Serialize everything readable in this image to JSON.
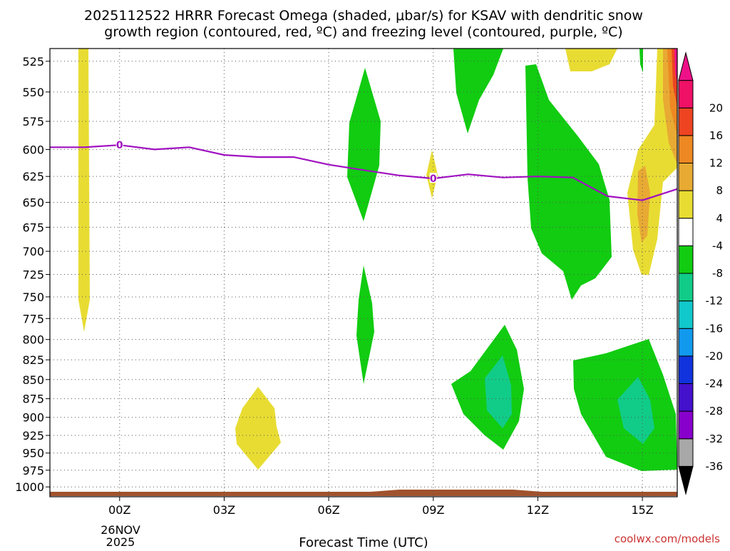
{
  "chart_data": {
    "type": "contour",
    "title_line1": "2025112522 HRRR Forecast Omega (shaded, μbar/s) for KSAV with dendritic snow",
    "title_line2": "growth region (contoured, red, ºC) and freezing level (contoured, purple, ºC)",
    "xlabel": "Forecast Time (UTC)",
    "credit": "coolwx.com/models",
    "x_ticks": [
      {
        "hour": 0,
        "label": "00Z"
      },
      {
        "hour": 3,
        "label": "03Z"
      },
      {
        "hour": 6,
        "label": "06Z"
      },
      {
        "hour": 9,
        "label": "09Z"
      },
      {
        "hour": 12,
        "label": "12Z"
      },
      {
        "hour": 15,
        "label": "15Z"
      }
    ],
    "x_date_line1": "26NOV",
    "x_date_line2": "2025",
    "x_range": [
      -2,
      16
    ],
    "y_ticks": [
      525,
      550,
      575,
      600,
      625,
      650,
      675,
      700,
      725,
      750,
      775,
      800,
      825,
      850,
      875,
      900,
      925,
      950,
      975,
      1000
    ],
    "y_range_hpa": [
      515,
      1015
    ],
    "colorbar": {
      "colors": [
        "#000000",
        "#a8a8a8",
        "#8800cc",
        "#4411cc",
        "#1133dd",
        "#1199ee",
        "#11c8cc",
        "#11cc88",
        "#11cc11",
        "#ffffff",
        "#e8dc33",
        "#e8aa33",
        "#ee8822",
        "#ee4422",
        "#ee1166",
        "#ee1188"
      ],
      "labels": [
        "-36",
        "-32",
        "-28",
        "-24",
        "-20",
        "-16",
        "-12",
        "-8",
        "-4",
        "4",
        "8",
        "12",
        "16",
        "20"
      ]
    },
    "freezing_level": {
      "label": "0",
      "label_hours": [
        0,
        9
      ],
      "points": [
        [
          -2,
          598
        ],
        [
          -1,
          598
        ],
        [
          0,
          596
        ],
        [
          1,
          600
        ],
        [
          2,
          598
        ],
        [
          3,
          605
        ],
        [
          4,
          607
        ],
        [
          5,
          607
        ],
        [
          6,
          614
        ],
        [
          7,
          619
        ],
        [
          8,
          624
        ],
        [
          9,
          627
        ],
        [
          10,
          623
        ],
        [
          11,
          626
        ],
        [
          12,
          625
        ],
        [
          13,
          626
        ],
        [
          14,
          644
        ],
        [
          15,
          648
        ],
        [
          16,
          637
        ]
      ]
    },
    "shaded_regions": [
      {
        "name": "omega-pos-4-col-a",
        "value": 4,
        "color": "#e8dc33"
      },
      {
        "name": "omega-pos-4-col-b",
        "value": 4,
        "color": "#e8dc33"
      },
      {
        "name": "omega-neg-4-col-c",
        "value": -4,
        "color": "#11cc11"
      },
      {
        "name": "omega-neg-4-col-d",
        "value": -4,
        "color": "#11cc11"
      },
      {
        "name": "omega-neg-8-col-e",
        "value": -8,
        "color": "#11cc88"
      }
    ]
  }
}
